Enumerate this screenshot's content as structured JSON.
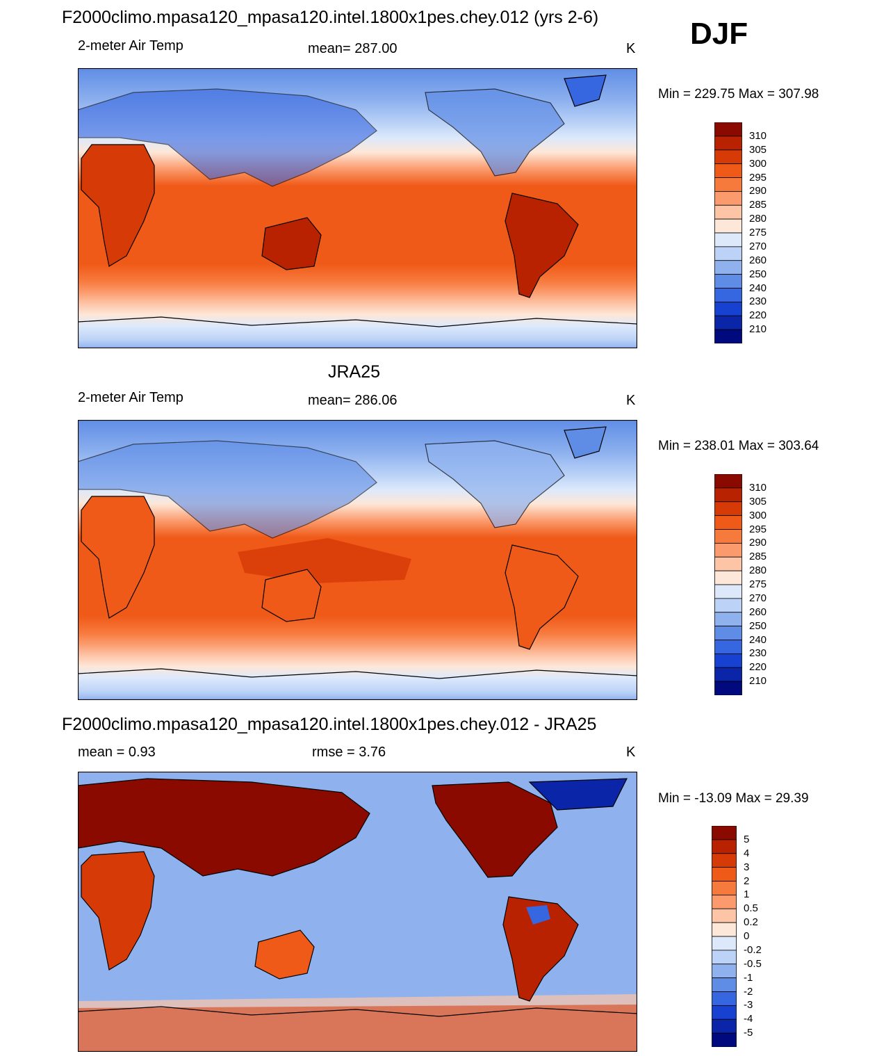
{
  "season": "DJF",
  "panels": [
    {
      "title": "F2000climo.mpasa120_mpasa120.intel.1800x1pes.chey.012 (yrs 2-6)",
      "left_label": "2-meter Air Temp",
      "center_label": "mean= 287.00",
      "units": "K",
      "minmax": "Min = 229.75 Max = 307.98"
    },
    {
      "title": "JRA25",
      "left_label": "2-meter Air Temp",
      "center_label": "mean= 286.06",
      "units": "K",
      "minmax": "Min = 238.01 Max = 303.64"
    },
    {
      "title": "F2000climo.mpasa120_mpasa120.intel.1800x1pes.chey.012 - JRA25",
      "left_label": "mean =   0.93",
      "center_label": "rmse =   3.76",
      "units": "K",
      "minmax": "Min = -13.09 Max =  29.39"
    }
  ],
  "colorbar_abs": {
    "labels": [
      "310",
      "305",
      "300",
      "295",
      "290",
      "285",
      "280",
      "275",
      "270",
      "260",
      "250",
      "240",
      "230",
      "220",
      "210"
    ],
    "colors": [
      "#8b0a00",
      "#b82200",
      "#d63a07",
      "#f05a18",
      "#f77a3d",
      "#fb9b6d",
      "#fdc4a6",
      "#fde7d8",
      "#dde9fb",
      "#bcd3f7",
      "#8fb2ef",
      "#5f8de6",
      "#3666e0",
      "#1641d1",
      "#0a25a8",
      "#000a7e"
    ]
  },
  "colorbar_diff": {
    "labels": [
      "5",
      "4",
      "3",
      "2",
      "1",
      "0.5",
      "0.2",
      "0",
      "-0.2",
      "-0.5",
      "-1",
      "-2",
      "-3",
      "-4",
      "-5"
    ],
    "colors": [
      "#8b0a00",
      "#b82200",
      "#d63a07",
      "#f05a18",
      "#f77a3d",
      "#fb9b6d",
      "#fdc4a6",
      "#fde7d8",
      "#dde9fb",
      "#bcd3f7",
      "#8fb2ef",
      "#5f8de6",
      "#3666e0",
      "#1641d1",
      "#0a25a8",
      "#000a7e"
    ]
  }
}
